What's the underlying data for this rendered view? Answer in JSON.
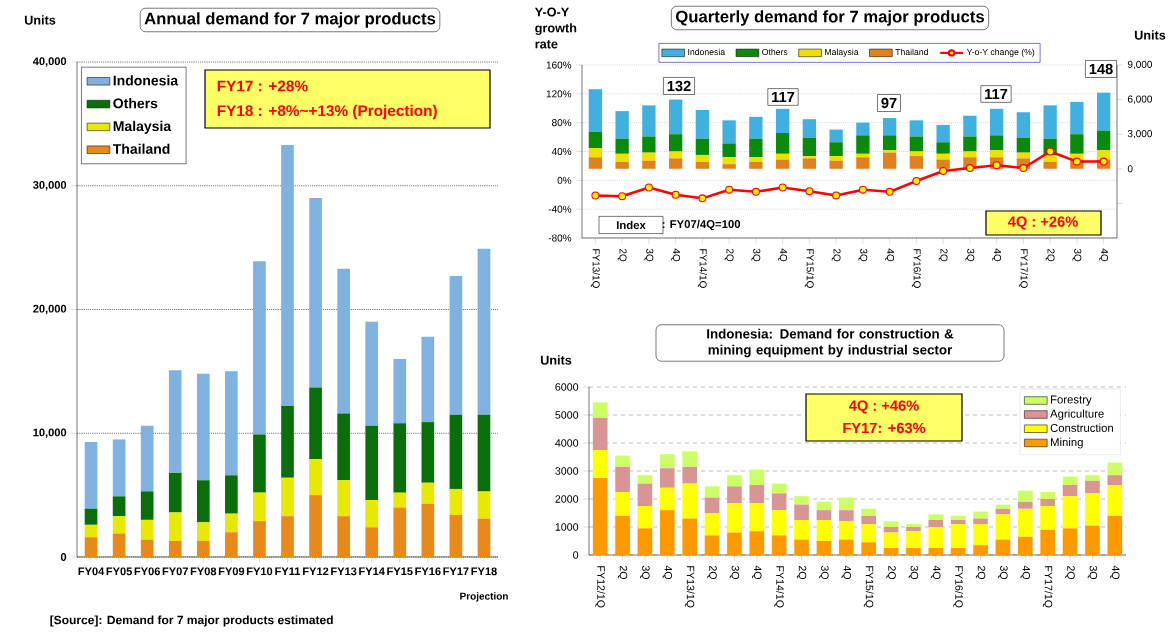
{
  "chart_data": [
    {
      "type": "bar",
      "title": "Annual demand  for 7 major products",
      "ylabel": "Units",
      "stacked": true,
      "grid": "y",
      "legend": "top left",
      "categories": [
        "FY04",
        "FY05",
        "FY06",
        "FY07",
        "FY08",
        "FY09",
        "FY10",
        "FY11",
        "FY12",
        "FY13",
        "FY14",
        "FY15",
        "FY16",
        "FY17",
        "FY18"
      ],
      "ylim": [
        0,
        40000
      ],
      "yticks": [
        {
          "value": 0,
          "label": "0"
        },
        {
          "value": 10000,
          "label": "10,000"
        },
        {
          "value": 20000,
          "label": "20,000"
        },
        {
          "value": 30000,
          "label": "30,000"
        },
        {
          "value": 40000,
          "label": "40,000"
        }
      ],
      "series": [
        {
          "name": "Thailand",
          "color": "#e88a1a",
          "values": [
            1600,
            1900,
            1400,
            1300,
            1300,
            2000,
            2900,
            3300,
            5000,
            3300,
            2400,
            4000,
            4300,
            3400,
            3100
          ]
        },
        {
          "name": "Malaysia",
          "color": "#e8e800",
          "values": [
            1000,
            1400,
            1600,
            2300,
            1500,
            1500,
            2300,
            3100,
            2900,
            2900,
            2200,
            1200,
            1700,
            2100,
            2200
          ]
        },
        {
          "name": "Others",
          "color": "#0a6e0a",
          "values": [
            1300,
            1600,
            2300,
            3200,
            3400,
            3100,
            4700,
            5800,
            5800,
            5400,
            6000,
            5600,
            4900,
            6000,
            6200
          ]
        },
        {
          "name": "Indonesia",
          "color": "#7fb2e0",
          "values": [
            5400,
            4600,
            5300,
            8300,
            8600,
            8400,
            14000,
            21100,
            15300,
            11700,
            8400,
            5200,
            6900,
            11200,
            13400
          ]
        }
      ],
      "annotations": [
        "FY17 : +28%",
        "FY18 : +8%~+13%  (Projection)",
        "Projection",
        "[Source]: Demand for 7 major products estimated"
      ]
    },
    {
      "type": "bar",
      "title": "Quarterly demand for 7 major products",
      "ylabel": "Y-O-Y growth rate",
      "y2label": "Units",
      "stacked": true,
      "grid": "y",
      "legend": "top",
      "marker": "circle",
      "categories": [
        "FY13/1Q",
        "2Q",
        "3Q",
        "4Q",
        "FY14/1Q",
        "2Q",
        "3Q",
        "4Q",
        "FY15/1Q",
        "2Q",
        "3Q",
        "4Q",
        "FY16/1Q",
        "2Q",
        "3Q",
        "4Q",
        "FY17/1Q",
        "2Q",
        "3Q",
        "4Q"
      ],
      "ylim": [
        -80,
        160
      ],
      "yticks": [
        {
          "value": -80,
          "label": "-80%"
        },
        {
          "value": -40,
          "label": "-40%"
        },
        {
          "value": 0,
          "label": "0%"
        },
        {
          "value": 40,
          "label": "40%"
        },
        {
          "value": 80,
          "label": "80%"
        },
        {
          "value": 120,
          "label": "120%"
        },
        {
          "value": 160,
          "label": "160%"
        }
      ],
      "y2lim": [
        -6000,
        9000
      ],
      "y2ticks": [
        {
          "value": -3000,
          "label": null
        },
        {
          "value": 0,
          "label": "0"
        },
        {
          "value": 3000,
          "label": "3,000"
        },
        {
          "value": 6000,
          "label": "6,000"
        },
        {
          "value": 9000,
          "label": "9,000"
        }
      ],
      "series": [
        {
          "name": "Thailand",
          "color": "#e0801e",
          "axis": "y2",
          "values": [
            1000,
            600,
            700,
            900,
            600,
            400,
            600,
            800,
            900,
            700,
            1000,
            1400,
            1100,
            800,
            1000,
            1000,
            900,
            600,
            800,
            800
          ]
        },
        {
          "name": "Malaysia",
          "color": "#f0e000",
          "axis": "y2",
          "values": [
            800,
            700,
            700,
            600,
            600,
            600,
            400,
            500,
            200,
            400,
            300,
            200,
            400,
            500,
            500,
            600,
            500,
            600,
            500,
            800
          ]
        },
        {
          "name": "Others",
          "color": "#0a8a0a",
          "axis": "y2",
          "values": [
            1400,
            1300,
            1400,
            1500,
            1400,
            1200,
            1600,
            1800,
            1600,
            1200,
            1600,
            1300,
            1300,
            1000,
            1300,
            1300,
            1300,
            1400,
            1700,
            1700
          ]
        },
        {
          "name": "Indonesia",
          "color": "#3fb0e0",
          "axis": "y2",
          "values": [
            3700,
            2400,
            2700,
            3000,
            2500,
            2000,
            1900,
            2100,
            1600,
            1100,
            1100,
            1500,
            1400,
            1500,
            1800,
            2300,
            2200,
            2900,
            2800,
            3300
          ]
        },
        {
          "name": "Y-o-Y change (%)",
          "color": "#ff0000",
          "type": "line",
          "axis": "y",
          "values": [
            -21,
            -22,
            -10,
            -20,
            -25,
            -13,
            -16,
            -10,
            -15,
            -21,
            -13,
            -16,
            -1,
            13,
            17,
            21,
            17,
            40,
            26,
            26
          ]
        }
      ],
      "annotations": [
        "Index",
        ": FY07/4Q=100",
        "4Q : +26%",
        "132",
        "117",
        "97",
        "117",
        "148"
      ]
    },
    {
      "type": "bar",
      "title": "Indonesia: Demand for construction & mining equipment by industrial sector",
      "ylabel": "Units",
      "stacked": true,
      "grid": "y",
      "legend": "top right",
      "categories": [
        "FY12/1Q",
        "2Q",
        "3Q",
        "4Q",
        "FY13/1Q",
        "2Q",
        "3Q",
        "4Q",
        "FY14/1Q",
        "2Q",
        "3Q",
        "4Q",
        "FY15/1Q",
        "2Q",
        "3Q",
        "4Q",
        "FY16/1Q",
        "2Q",
        "3Q",
        "4Q",
        "FY17/1Q",
        "2Q",
        "3Q",
        "4Q"
      ],
      "ylim": [
        0,
        6000
      ],
      "yticks": [
        0,
        1000,
        2000,
        3000,
        4000,
        5000,
        6000
      ],
      "series": [
        {
          "name": "Mining",
          "color": "#ff9900",
          "values": [
            2750,
            1400,
            950,
            1600,
            1300,
            700,
            800,
            850,
            700,
            550,
            500,
            550,
            450,
            250,
            250,
            250,
            250,
            350,
            550,
            650,
            900,
            950,
            1050,
            1400
          ]
        },
        {
          "name": "Construction",
          "color": "#ffff00",
          "values": [
            1000,
            850,
            800,
            800,
            1250,
            800,
            1050,
            1000,
            900,
            700,
            750,
            650,
            650,
            550,
            600,
            750,
            850,
            750,
            900,
            1000,
            850,
            1150,
            1150,
            1100
          ]
        },
        {
          "name": "Agriculture",
          "color": "#d99594",
          "values": [
            1150,
            900,
            800,
            700,
            600,
            550,
            600,
            650,
            600,
            550,
            350,
            400,
            300,
            200,
            150,
            250,
            150,
            200,
            200,
            250,
            250,
            400,
            450,
            350
          ]
        },
        {
          "name": "Forestry",
          "color": "#ccff66",
          "values": [
            550,
            400,
            300,
            500,
            550,
            400,
            400,
            550,
            350,
            300,
            300,
            450,
            250,
            200,
            100,
            200,
            150,
            250,
            150,
            400,
            250,
            300,
            200,
            450
          ]
        }
      ],
      "annotations": [
        "4Q : +46%",
        "FY17: +63%"
      ]
    }
  ]
}
